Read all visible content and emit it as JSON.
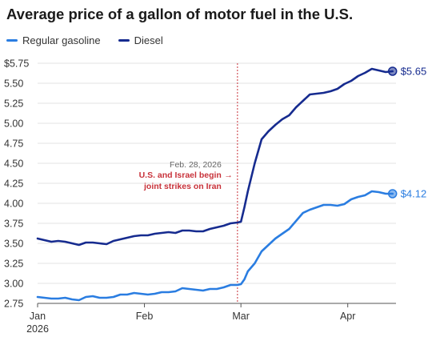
{
  "chart_data": {
    "type": "line",
    "title": "Average price of a gallon of motor fuel in the U.S.",
    "xlabel": "",
    "ylabel": "",
    "x_ticks": [
      {
        "date": "2026-01-01",
        "label": "Jan",
        "sublabel": "2026"
      },
      {
        "date": "2026-02-01",
        "label": "Feb",
        "sublabel": ""
      },
      {
        "date": "2026-03-01",
        "label": "Mar",
        "sublabel": ""
      },
      {
        "date": "2026-04-01",
        "label": "Apr",
        "sublabel": ""
      }
    ],
    "y_ticks": [
      "$5.75",
      "5.50",
      "5.25",
      "5.00",
      "4.75",
      "4.50",
      "4.25",
      "4.00",
      "3.75",
      "3.50",
      "3.25",
      "3.00",
      "2.75"
    ],
    "ylim": [
      2.75,
      5.75
    ],
    "xlim": [
      "2026-01-01",
      "2026-04-15"
    ],
    "grid": "horizontal",
    "legend_position": "top-left",
    "annotation": {
      "date": "2026-02-28",
      "date_label": "Feb. 28, 2026",
      "text_line1": "U.S. and Israel begin",
      "arrow": "→",
      "text_line2": "joint strikes on Iran",
      "color": "#c8323a"
    },
    "series": [
      {
        "name": "Regular gasoline",
        "color": "#2a7de1",
        "end_label": "$4.12",
        "points": [
          [
            "2026-01-01",
            2.83
          ],
          [
            "2026-01-03",
            2.82
          ],
          [
            "2026-01-05",
            2.81
          ],
          [
            "2026-01-07",
            2.81
          ],
          [
            "2026-01-09",
            2.82
          ],
          [
            "2026-01-11",
            2.8
          ],
          [
            "2026-01-13",
            2.79
          ],
          [
            "2026-01-15",
            2.83
          ],
          [
            "2026-01-17",
            2.84
          ],
          [
            "2026-01-19",
            2.82
          ],
          [
            "2026-01-21",
            2.82
          ],
          [
            "2026-01-23",
            2.83
          ],
          [
            "2026-01-25",
            2.86
          ],
          [
            "2026-01-27",
            2.86
          ],
          [
            "2026-01-29",
            2.88
          ],
          [
            "2026-01-31",
            2.87
          ],
          [
            "2026-02-02",
            2.86
          ],
          [
            "2026-02-04",
            2.87
          ],
          [
            "2026-02-06",
            2.89
          ],
          [
            "2026-02-08",
            2.89
          ],
          [
            "2026-02-10",
            2.9
          ],
          [
            "2026-02-12",
            2.94
          ],
          [
            "2026-02-14",
            2.93
          ],
          [
            "2026-02-16",
            2.92
          ],
          [
            "2026-02-18",
            2.91
          ],
          [
            "2026-02-20",
            2.93
          ],
          [
            "2026-02-22",
            2.93
          ],
          [
            "2026-02-24",
            2.95
          ],
          [
            "2026-02-26",
            2.98
          ],
          [
            "2026-02-28",
            2.98
          ],
          [
            "2026-03-01",
            2.99
          ],
          [
            "2026-03-02",
            3.05
          ],
          [
            "2026-03-03",
            3.15
          ],
          [
            "2026-03-05",
            3.25
          ],
          [
            "2026-03-07",
            3.4
          ],
          [
            "2026-03-09",
            3.48
          ],
          [
            "2026-03-11",
            3.56
          ],
          [
            "2026-03-13",
            3.62
          ],
          [
            "2026-03-15",
            3.68
          ],
          [
            "2026-03-17",
            3.78
          ],
          [
            "2026-03-19",
            3.88
          ],
          [
            "2026-03-21",
            3.92
          ],
          [
            "2026-03-23",
            3.95
          ],
          [
            "2026-03-25",
            3.98
          ],
          [
            "2026-03-27",
            3.98
          ],
          [
            "2026-03-29",
            3.97
          ],
          [
            "2026-03-31",
            3.99
          ],
          [
            "2026-04-02",
            4.05
          ],
          [
            "2026-04-04",
            4.08
          ],
          [
            "2026-04-06",
            4.1
          ],
          [
            "2026-04-08",
            4.15
          ],
          [
            "2026-04-10",
            4.14
          ],
          [
            "2026-04-12",
            4.12
          ],
          [
            "2026-04-14",
            4.12
          ]
        ]
      },
      {
        "name": "Diesel",
        "color": "#162b8f",
        "end_label": "$5.65",
        "points": [
          [
            "2026-01-01",
            3.56
          ],
          [
            "2026-01-03",
            3.54
          ],
          [
            "2026-01-05",
            3.52
          ],
          [
            "2026-01-07",
            3.53
          ],
          [
            "2026-01-09",
            3.52
          ],
          [
            "2026-01-11",
            3.5
          ],
          [
            "2026-01-13",
            3.48
          ],
          [
            "2026-01-15",
            3.51
          ],
          [
            "2026-01-17",
            3.51
          ],
          [
            "2026-01-19",
            3.5
          ],
          [
            "2026-01-21",
            3.49
          ],
          [
            "2026-01-23",
            3.53
          ],
          [
            "2026-01-25",
            3.55
          ],
          [
            "2026-01-27",
            3.57
          ],
          [
            "2026-01-29",
            3.59
          ],
          [
            "2026-01-31",
            3.6
          ],
          [
            "2026-02-02",
            3.6
          ],
          [
            "2026-02-04",
            3.62
          ],
          [
            "2026-02-06",
            3.63
          ],
          [
            "2026-02-08",
            3.64
          ],
          [
            "2026-02-10",
            3.63
          ],
          [
            "2026-02-12",
            3.66
          ],
          [
            "2026-02-14",
            3.66
          ],
          [
            "2026-02-16",
            3.65
          ],
          [
            "2026-02-18",
            3.65
          ],
          [
            "2026-02-20",
            3.68
          ],
          [
            "2026-02-22",
            3.7
          ],
          [
            "2026-02-24",
            3.72
          ],
          [
            "2026-02-26",
            3.75
          ],
          [
            "2026-02-28",
            3.76
          ],
          [
            "2026-03-01",
            3.77
          ],
          [
            "2026-03-02",
            3.95
          ],
          [
            "2026-03-03",
            4.15
          ],
          [
            "2026-03-05",
            4.5
          ],
          [
            "2026-03-07",
            4.8
          ],
          [
            "2026-03-09",
            4.9
          ],
          [
            "2026-03-11",
            4.98
          ],
          [
            "2026-03-13",
            5.05
          ],
          [
            "2026-03-15",
            5.1
          ],
          [
            "2026-03-17",
            5.2
          ],
          [
            "2026-03-19",
            5.28
          ],
          [
            "2026-03-21",
            5.36
          ],
          [
            "2026-03-23",
            5.37
          ],
          [
            "2026-03-25",
            5.38
          ],
          [
            "2026-03-27",
            5.4
          ],
          [
            "2026-03-29",
            5.43
          ],
          [
            "2026-03-31",
            5.49
          ],
          [
            "2026-04-02",
            5.53
          ],
          [
            "2026-04-04",
            5.59
          ],
          [
            "2026-04-06",
            5.63
          ],
          [
            "2026-04-08",
            5.68
          ],
          [
            "2026-04-10",
            5.66
          ],
          [
            "2026-04-12",
            5.64
          ],
          [
            "2026-04-14",
            5.65
          ]
        ]
      }
    ]
  }
}
